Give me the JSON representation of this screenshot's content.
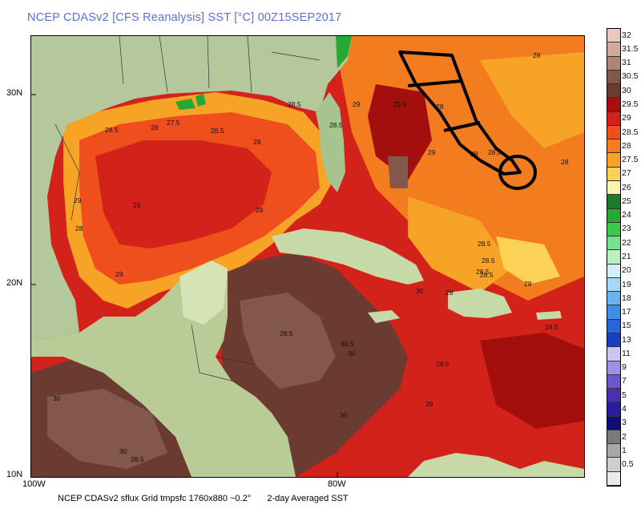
{
  "title": "NCEP CDASv2 [CFS Reanalysis] SST [°C] 00Z15SEP2017",
  "axes": {
    "lat_labels": [
      "30N",
      "20N",
      "10N"
    ],
    "lon_labels": [
      "100W",
      "80W"
    ]
  },
  "footer": {
    "source": "NCEP CDASv2 sflux Grid tmpsfc 1760x880 ~0.2°",
    "product": "2-day Averaged SST"
  },
  "colorbar": [
    {
      "label": "32",
      "color": "#e7c9bf"
    },
    {
      "label": "31.5",
      "color": "#d1aa9c"
    },
    {
      "label": "31",
      "color": "#b08377"
    },
    {
      "label": "30.5",
      "color": "#84574c"
    },
    {
      "label": "30",
      "color": "#6b3a30"
    },
    {
      "label": "29.5",
      "color": "#a30f0c"
    },
    {
      "label": "29",
      "color": "#d2221a"
    },
    {
      "label": "28.5",
      "color": "#ef4e1d"
    },
    {
      "label": "28",
      "color": "#f37c1f"
    },
    {
      "label": "27.5",
      "color": "#f7a326"
    },
    {
      "label": "27",
      "color": "#fbd156"
    },
    {
      "label": "26",
      "color": "#fbf4b0"
    },
    {
      "label": "25",
      "color": "#1b7a2b"
    },
    {
      "label": "24",
      "color": "#25a834"
    },
    {
      "label": "23",
      "color": "#3cc84a"
    },
    {
      "label": "22",
      "color": "#76e08a"
    },
    {
      "label": "21",
      "color": "#b7f0c1"
    },
    {
      "label": "20",
      "color": "#d3f0f7"
    },
    {
      "label": "19",
      "color": "#a3d9f4"
    },
    {
      "label": "18",
      "color": "#69b4ec"
    },
    {
      "label": "17",
      "color": "#3c8fe3"
    },
    {
      "label": "15",
      "color": "#2567d9"
    },
    {
      "label": "13",
      "color": "#1840c0"
    },
    {
      "label": "11",
      "color": "#c9c6f2"
    },
    {
      "label": "9",
      "color": "#a18ee6"
    },
    {
      "label": "7",
      "color": "#6d55cf"
    },
    {
      "label": "5",
      "color": "#4b2fb0"
    },
    {
      "label": "4",
      "color": "#2a1ca0"
    },
    {
      "label": "3",
      "color": "#100b7a"
    },
    {
      "label": "2",
      "color": "#7a7a7a"
    },
    {
      "label": "1",
      "color": "#a8a8a8"
    },
    {
      "label": "0.5",
      "color": "#cfcfcf"
    },
    {
      "label": "",
      "color": "#ebebeb"
    }
  ],
  "sst_labels": [
    "29.5",
    "29",
    "28.5",
    "28",
    "28",
    "27.5",
    "28.5",
    "28.5",
    "29",
    "28.5",
    "29",
    "29",
    "28",
    "28.5",
    "28",
    "28.5",
    "29",
    "28",
    "29",
    "28.5",
    "29",
    "28",
    "28.5",
    "28.5",
    "30",
    "30.5",
    "30",
    "29.5",
    "29",
    "30",
    "30",
    "28.5",
    "30",
    "29",
    "28",
    "28.5",
    "28.5"
  ]
}
